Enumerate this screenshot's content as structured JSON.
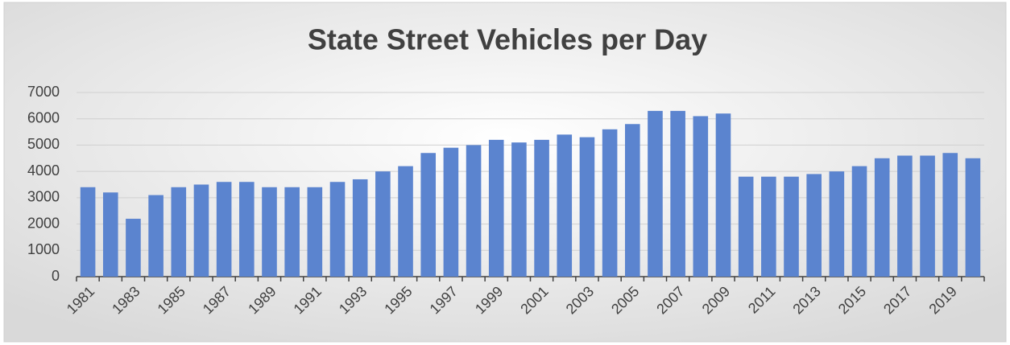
{
  "chart_data": {
    "type": "bar",
    "title": "State Street Vehicles per Day",
    "categories": [
      "1981",
      null,
      "1983",
      null,
      "1985",
      null,
      "1987",
      null,
      "1989",
      null,
      "1991",
      null,
      "1993",
      null,
      "1995",
      null,
      "1997",
      null,
      "1999",
      null,
      "2001",
      null,
      "2003",
      null,
      "2005",
      null,
      "2007",
      null,
      "2009",
      null,
      "2011",
      null,
      "2013",
      null,
      "2015",
      null,
      "2017",
      null,
      "2019",
      null
    ],
    "values": [
      3400,
      3200,
      2200,
      3100,
      3400,
      3500,
      3600,
      3600,
      3400,
      3400,
      3400,
      3600,
      3700,
      4000,
      4200,
      4700,
      4900,
      5000,
      5200,
      5100,
      5200,
      5400,
      5300,
      5600,
      5800,
      6300,
      6300,
      6100,
      6200,
      3800,
      3800,
      3800,
      3900,
      4000,
      4200,
      4500,
      4600,
      4600,
      4700,
      4500
    ],
    "color": "#5b84cf",
    "ylim": [
      0,
      7000
    ],
    "yticks": [
      0,
      1000,
      2000,
      3000,
      4000,
      5000,
      6000,
      7000
    ],
    "grid": true
  }
}
